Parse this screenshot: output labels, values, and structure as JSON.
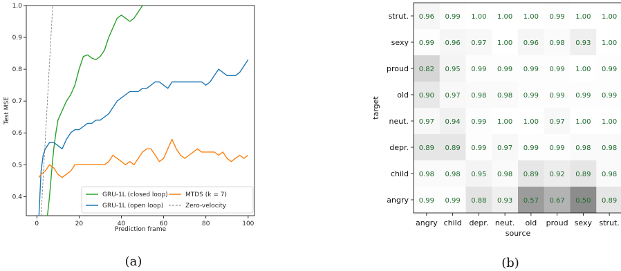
{
  "chart_data": [
    {
      "type": "line",
      "caption": "(a)",
      "xlabel": "Prediction frame",
      "ylabel": "Test MSE",
      "xlim": [
        -5,
        103
      ],
      "ylim": [
        0.34,
        1.0
      ],
      "xticks": [
        "0",
        "20",
        "40",
        "60",
        "80",
        "100"
      ],
      "yticks": [
        "0.4",
        "0.5",
        "0.6",
        "0.7",
        "0.8",
        "0.9",
        "1.0"
      ],
      "legend_position": "lower-center",
      "series": [
        {
          "name": "GRU-1L (closed loop)",
          "color": "#2ca02c",
          "style": "solid",
          "x": [
            5,
            6,
            7,
            8,
            9,
            10,
            12,
            14,
            16,
            18,
            20,
            22,
            24,
            26,
            28,
            30,
            32,
            34,
            36,
            38,
            40,
            42,
            44,
            46,
            48,
            50,
            52
          ],
          "y": [
            0.34,
            0.4,
            0.48,
            0.55,
            0.6,
            0.64,
            0.67,
            0.7,
            0.72,
            0.75,
            0.8,
            0.84,
            0.845,
            0.835,
            0.83,
            0.84,
            0.86,
            0.9,
            0.93,
            0.96,
            0.97,
            0.96,
            0.95,
            0.96,
            0.98,
            1.0,
            1.0
          ]
        },
        {
          "name": "GRU-1L (open loop)",
          "color": "#1f77b4",
          "style": "solid",
          "x": [
            1,
            2,
            3,
            4,
            5,
            6,
            7,
            8,
            10,
            12,
            14,
            16,
            18,
            20,
            22,
            24,
            26,
            28,
            30,
            32,
            34,
            36,
            38,
            40,
            42,
            44,
            46,
            48,
            50,
            52,
            54,
            56,
            58,
            60,
            62,
            64,
            66,
            68,
            70,
            72,
            74,
            76,
            78,
            80,
            82,
            84,
            86,
            88,
            90,
            92,
            94,
            96,
            98,
            100
          ],
          "y": [
            0.34,
            0.48,
            0.53,
            0.55,
            0.56,
            0.57,
            0.57,
            0.57,
            0.56,
            0.55,
            0.58,
            0.6,
            0.61,
            0.61,
            0.62,
            0.63,
            0.63,
            0.64,
            0.64,
            0.65,
            0.66,
            0.68,
            0.7,
            0.71,
            0.72,
            0.73,
            0.73,
            0.73,
            0.74,
            0.74,
            0.75,
            0.76,
            0.76,
            0.75,
            0.74,
            0.76,
            0.76,
            0.76,
            0.76,
            0.76,
            0.76,
            0.76,
            0.76,
            0.75,
            0.76,
            0.78,
            0.8,
            0.79,
            0.78,
            0.78,
            0.78,
            0.79,
            0.81,
            0.83
          ]
        },
        {
          "name": "MTDS (k = 7)",
          "color": "#ff7f0e",
          "style": "solid",
          "x": [
            1,
            2,
            4,
            6,
            8,
            10,
            12,
            14,
            16,
            18,
            20,
            22,
            24,
            26,
            28,
            30,
            32,
            34,
            36,
            38,
            40,
            42,
            44,
            46,
            48,
            50,
            52,
            54,
            56,
            58,
            60,
            62,
            64,
            66,
            68,
            70,
            72,
            74,
            76,
            78,
            80,
            82,
            84,
            86,
            88,
            90,
            92,
            94,
            96,
            98,
            100
          ],
          "y": [
            0.46,
            0.47,
            0.48,
            0.5,
            0.49,
            0.47,
            0.46,
            0.47,
            0.48,
            0.5,
            0.5,
            0.5,
            0.5,
            0.5,
            0.5,
            0.5,
            0.5,
            0.51,
            0.53,
            0.52,
            0.51,
            0.5,
            0.51,
            0.5,
            0.52,
            0.54,
            0.55,
            0.55,
            0.53,
            0.51,
            0.52,
            0.55,
            0.58,
            0.55,
            0.53,
            0.52,
            0.53,
            0.54,
            0.55,
            0.54,
            0.54,
            0.54,
            0.54,
            0.53,
            0.54,
            0.52,
            0.51,
            0.52,
            0.53,
            0.52,
            0.53
          ]
        },
        {
          "name": "Zero-velocity",
          "color": "#7f7f7f",
          "style": "dashed",
          "x": [
            2,
            7.5
          ],
          "y": [
            0.34,
            1.0
          ]
        }
      ]
    },
    {
      "type": "heatmap",
      "caption": "(b)",
      "xlabel": "source",
      "ylabel": "target",
      "columns": [
        "angry",
        "child",
        "depr.",
        "neut.",
        "old",
        "proud",
        "sexy",
        "strut."
      ],
      "rows": [
        "strut.",
        "sexy",
        "proud",
        "old",
        "neut.",
        "depr.",
        "child",
        "angry"
      ],
      "values": [
        [
          "0.96",
          "0.99",
          "1.00",
          "1.00",
          "1.00",
          "0.99",
          "1.00",
          "1.00"
        ],
        [
          "0.99",
          "0.96",
          "0.97",
          "1.00",
          "0.96",
          "0.98",
          "0.93",
          "1.00"
        ],
        [
          "0.82",
          "0.95",
          "0.99",
          "0.99",
          "0.99",
          "0.99",
          "1.00",
          "0.99"
        ],
        [
          "0.90",
          "0.97",
          "0.98",
          "0.98",
          "0.99",
          "0.99",
          "0.99",
          "0.99"
        ],
        [
          "0.97",
          "0.94",
          "0.99",
          "1.00",
          "1.00",
          "0.97",
          "1.00",
          "1.00"
        ],
        [
          "0.89",
          "0.89",
          "0.99",
          "0.97",
          "0.99",
          "0.99",
          "0.98",
          "0.98"
        ],
        [
          "0.98",
          "0.98",
          "0.95",
          "0.98",
          "0.89",
          "0.92",
          "0.89",
          "0.98"
        ],
        [
          "0.99",
          "0.99",
          "0.88",
          "0.93",
          "0.57",
          "0.67",
          "0.50",
          "0.89"
        ]
      ],
      "text_color": "#1f6b2e"
    }
  ]
}
